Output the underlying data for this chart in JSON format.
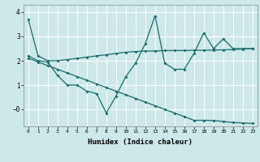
{
  "xlabel": "Humidex (Indice chaleur)",
  "ylabel": "",
  "bg_color": "#cce8e8",
  "grid_color": "#ffffff",
  "line_color": "#1a6b6b",
  "x_ticks": [
    0,
    1,
    2,
    3,
    4,
    5,
    6,
    7,
    8,
    9,
    10,
    11,
    12,
    13,
    14,
    15,
    16,
    17,
    18,
    19,
    20,
    21,
    22,
    23
  ],
  "ylim": [
    -0.7,
    4.3
  ],
  "xlim": [
    -0.5,
    23.5
  ],
  "series1_x": [
    0,
    1,
    2,
    3,
    4,
    5,
    6,
    7,
    8,
    9,
    10,
    11,
    12,
    13,
    14,
    15,
    16,
    17,
    18,
    19,
    20,
    21,
    22,
    23
  ],
  "series1_y": [
    3.7,
    2.2,
    2.0,
    2.0,
    2.05,
    2.1,
    2.15,
    2.2,
    2.25,
    2.3,
    2.35,
    2.38,
    2.4,
    2.4,
    2.42,
    2.42,
    2.42,
    2.43,
    2.43,
    2.44,
    2.45,
    2.46,
    2.48,
    2.5
  ],
  "series2_x": [
    0,
    1,
    2,
    3,
    4,
    5,
    6,
    7,
    8,
    9,
    10,
    11,
    12,
    13,
    14,
    15,
    16,
    17,
    18,
    19,
    20,
    21,
    22,
    23
  ],
  "series2_y": [
    2.2,
    2.0,
    1.95,
    1.4,
    1.0,
    1.0,
    0.75,
    0.65,
    -0.15,
    0.55,
    1.35,
    1.9,
    2.7,
    3.85,
    1.9,
    1.65,
    1.65,
    2.3,
    3.15,
    2.5,
    2.9,
    2.5,
    2.5,
    2.5
  ],
  "series3_x": [
    0,
    1,
    2,
    3,
    4,
    5,
    6,
    7,
    8,
    9,
    10,
    11,
    12,
    13,
    14,
    15,
    16,
    17,
    18,
    19,
    20,
    21,
    22,
    23
  ],
  "series3_y": [
    2.1,
    1.95,
    1.8,
    1.65,
    1.5,
    1.35,
    1.2,
    1.05,
    0.9,
    0.75,
    0.6,
    0.45,
    0.3,
    0.15,
    0.0,
    -0.15,
    -0.3,
    -0.45,
    -0.45,
    -0.46,
    -0.5,
    -0.54,
    -0.56,
    -0.58
  ]
}
